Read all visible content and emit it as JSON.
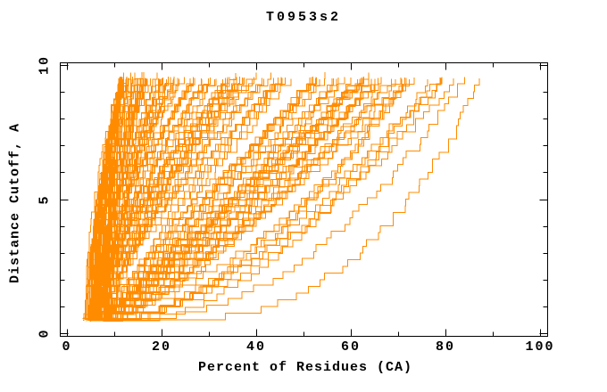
{
  "page": {
    "background": "#ffffff"
  },
  "chart_data": {
    "type": "line",
    "title": "T0953s2",
    "xlabel": "Percent of Residues (CA)",
    "ylabel": "Distance Cutoff, A",
    "xlim": [
      0,
      100
    ],
    "ylim": [
      0,
      10
    ],
    "x_major_ticks": [
      0,
      20,
      40,
      60,
      80,
      100
    ],
    "x_minor_tick_step": 10,
    "y_major_ticks": [
      0,
      5,
      10
    ],
    "y_minor_tick_step": 1,
    "grid": false,
    "legend": null,
    "frame": "full box with inward ticks on all four sides",
    "series_color": "#ff8c00",
    "axis_color": "#000000",
    "description": "Fan of ~150 per-model cumulative accuracy step-curves: percent of CA residues fitting under each distance cutoff. Dense bundle on the left, sparse tail of worse models to the right.",
    "curve_envelope": {
      "at_y_0.5": {
        "x_min": 3.5,
        "x_max": 10
      },
      "at_y_5": {
        "x_min": 5.5,
        "x_max": 69,
        "dense_x_max": 40
      },
      "at_y_9.7": {
        "x_min": 12,
        "x_max": 88,
        "dense_x_max": 50
      }
    },
    "generator": {
      "seed": 12,
      "count": 150,
      "y_start": 0.45,
      "y_end": 9.62,
      "y_step": 0.25,
      "bottom_x_min": 3.2,
      "bottom_x_max": 8.6,
      "top_x_min": 11.5,
      "top_x_max": 88.5,
      "top_skew": 2.6,
      "p_at_min_top": 1.9,
      "p_at_max_top": 0.38,
      "p_jitter": 0.3,
      "jitter": 0.8
    }
  }
}
